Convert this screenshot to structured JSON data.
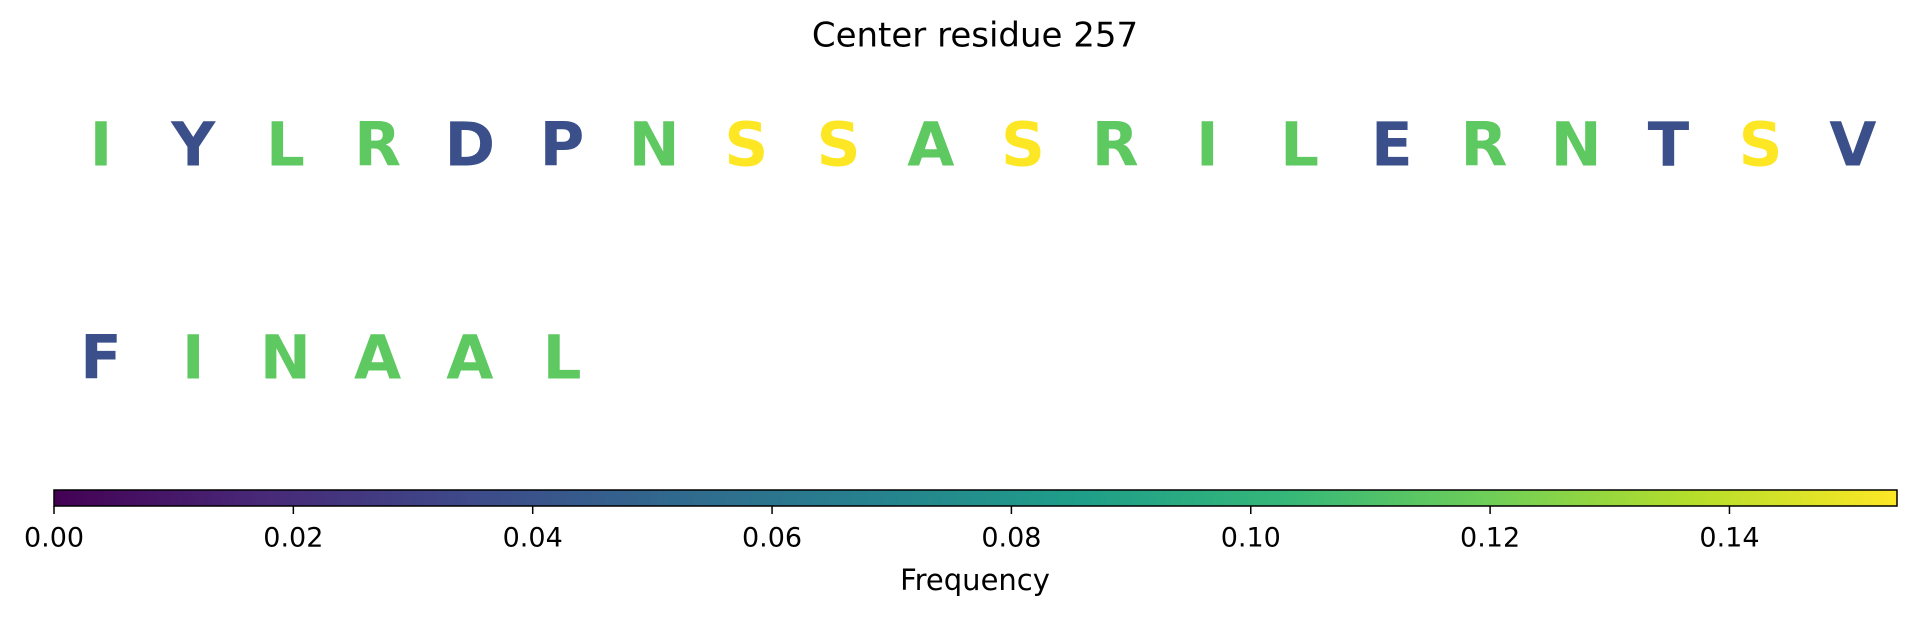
{
  "chart_data": {
    "type": "sequence",
    "title": "Center residue 257",
    "categories": [
      "I",
      "Y",
      "L",
      "R",
      "D",
      "P",
      "N",
      "S",
      "S",
      "A",
      "S",
      "R",
      "I",
      "L",
      "E",
      "R",
      "N",
      "T",
      "S",
      "V",
      "F",
      "I",
      "N",
      "A",
      "A",
      "L"
    ],
    "values": [
      0.115,
      0.038,
      0.115,
      0.115,
      0.038,
      0.038,
      0.115,
      0.154,
      0.154,
      0.115,
      0.154,
      0.115,
      0.115,
      0.115,
      0.038,
      0.115,
      0.115,
      0.038,
      0.154,
      0.038,
      0.038,
      0.115,
      0.115,
      0.115,
      0.115,
      0.115
    ],
    "colormap": "viridis",
    "xlabel": "Frequency",
    "xlim": [
      0,
      0.154
    ],
    "xticks": [
      {
        "value": 0,
        "label": "0.00"
      },
      {
        "value": 0.02,
        "label": "0.02"
      },
      {
        "value": 0.04,
        "label": "0.04"
      },
      {
        "value": 0.06,
        "label": "0.06"
      },
      {
        "value": 0.08,
        "label": "0.08"
      },
      {
        "value": 0.1,
        "label": "0.10"
      },
      {
        "value": 0.12,
        "label": "0.12"
      },
      {
        "value": 0.14,
        "label": "0.14"
      }
    ]
  }
}
